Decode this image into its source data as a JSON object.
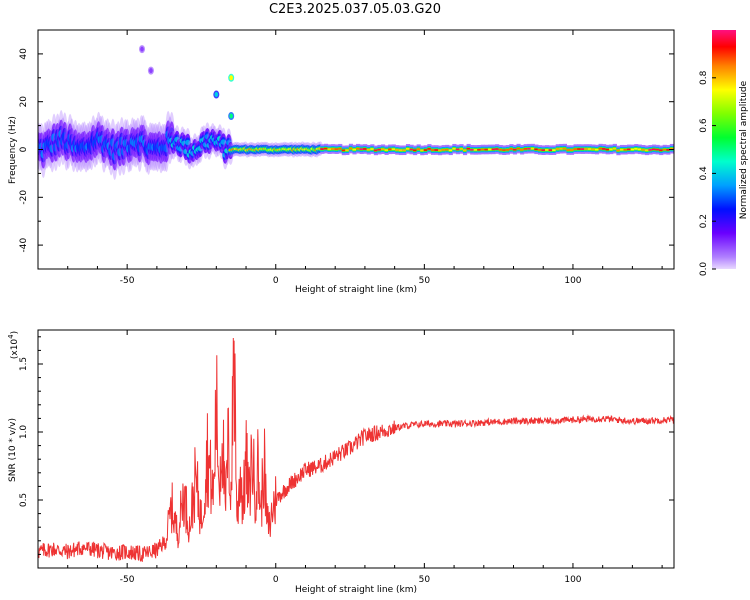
{
  "title": "C2E3.2025.037.05.03.G20",
  "colorbar": {
    "label": "Normalized spectral amplitude",
    "ticks": [
      "0.0",
      "0.2",
      "0.4",
      "0.6",
      "0.8"
    ],
    "tick_values": [
      0.0,
      0.2,
      0.4,
      0.6,
      0.8
    ],
    "range": [
      0,
      1
    ],
    "colors": [
      "#cc99ff",
      "#6600ff",
      "#0000ff",
      "#00ccff",
      "#00ff66",
      "#66ff00",
      "#ffff00",
      "#ff8800",
      "#ff0000",
      "#ff00cc"
    ]
  },
  "chart_data": [
    {
      "type": "heatmap",
      "xlabel": "Height of straight line (km)",
      "ylabel": "Frequency (Hz)",
      "xlim": [
        -80,
        134
      ],
      "ylim": [
        -50,
        50
      ],
      "xticks": [
        -50,
        0,
        50,
        100
      ],
      "yticks": [
        -40,
        -20,
        0,
        20,
        40
      ],
      "xtick_labels": [
        "-50",
        "0",
        "50",
        "100"
      ],
      "ytick_labels": [
        "-40",
        "-20",
        "0",
        "20",
        "40"
      ],
      "description_segments": [
        {
          "x_range": [
            -80,
            -35
          ],
          "center_hz": 2,
          "spread_hz": 10,
          "peak_amplitude": 0.35
        },
        {
          "x_range": [
            -35,
            -15
          ],
          "center_hz": 2,
          "spread_hz": 6,
          "peak_amplitude": 0.45
        },
        {
          "x_range": [
            -15,
            15
          ],
          "center_hz": 0,
          "spread_hz": 3,
          "peak_amplitude": 0.85
        },
        {
          "x_range": [
            15,
            134
          ],
          "center_hz": 0,
          "spread_hz": 2,
          "peak_amplitude": 1.0
        }
      ],
      "isolated_spots": [
        {
          "x": -15,
          "y": 30,
          "amplitude": 0.75
        },
        {
          "x": -20,
          "y": 23,
          "amplitude": 0.4
        },
        {
          "x": -15,
          "y": 14,
          "amplitude": 0.5
        },
        {
          "x": -45,
          "y": 42,
          "amplitude": 0.1
        },
        {
          "x": -42,
          "y": 33,
          "amplitude": 0.1
        }
      ]
    },
    {
      "type": "line",
      "xlabel": "Height of straight line (km)",
      "ylabel": "SNR (10 * v/v)",
      "y_multiplier_label": "(x10",
      "y_multiplier_exp": "4",
      "xlim": [
        -80,
        134
      ],
      "ylim": [
        0,
        1.75
      ],
      "xticks": [
        -50,
        0,
        50,
        100
      ],
      "yticks": [
        0.5,
        1.0,
        1.5
      ],
      "xtick_labels": [
        "-50",
        "0",
        "50",
        "100"
      ],
      "ytick_labels": [
        "0.5",
        "1.0",
        "1.5"
      ],
      "color": "#ee3333",
      "x": [
        -80,
        -75,
        -70,
        -65,
        -60,
        -55,
        -50,
        -45,
        -40,
        -37,
        -35,
        -33,
        -31,
        -29,
        -27,
        -25,
        -23,
        -21,
        -20,
        -19,
        -18,
        -17,
        -16,
        -15,
        -14,
        -13,
        -12,
        -11,
        -10,
        -9,
        -8,
        -7,
        -6,
        -5,
        -4,
        -3,
        -2,
        -1,
        0,
        2,
        5,
        10,
        15,
        20,
        25,
        30,
        35,
        40,
        45,
        50,
        60,
        70,
        80,
        90,
        100,
        110,
        120,
        134
      ],
      "y": [
        0.12,
        0.14,
        0.12,
        0.15,
        0.13,
        0.11,
        0.12,
        0.1,
        0.13,
        0.2,
        0.45,
        0.25,
        0.55,
        0.3,
        0.65,
        0.35,
        0.85,
        0.5,
        1.2,
        0.6,
        1.05,
        0.4,
        0.9,
        0.55,
        1.7,
        0.3,
        0.75,
        0.45,
        0.8,
        0.5,
        0.85,
        0.55,
        0.75,
        0.4,
        0.8,
        0.35,
        0.3,
        0.45,
        0.5,
        0.55,
        0.62,
        0.72,
        0.75,
        0.82,
        0.88,
        0.97,
        1.0,
        1.03,
        1.05,
        1.06,
        1.06,
        1.07,
        1.08,
        1.08,
        1.09,
        1.1,
        1.08,
        1.09
      ]
    }
  ]
}
